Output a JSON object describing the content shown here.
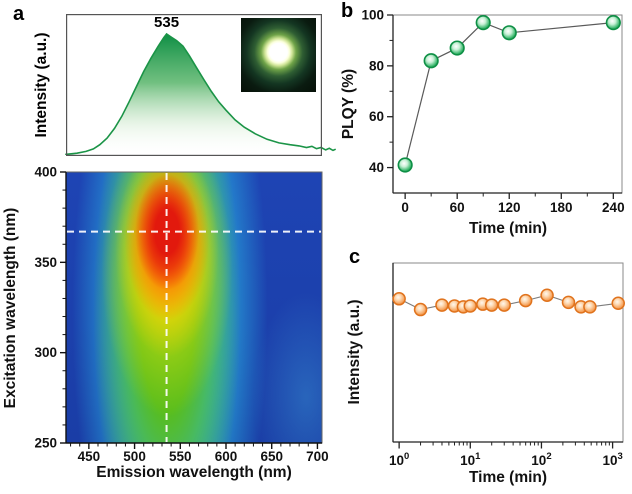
{
  "figure": {
    "background": "#ffffff",
    "panels": {
      "a": {
        "label": "a"
      },
      "b": {
        "label": "b"
      },
      "c": {
        "label": "c"
      }
    }
  },
  "colors": {
    "spectrum_green": "#1b9447",
    "plqy_marker_green": "#2db463",
    "stability_marker_orange": "#f0883a",
    "connector_gray": "#5a5a5a",
    "crosshair_white": "#ffffff",
    "map_colormap": [
      "#1e44b4",
      "#29b3e2",
      "#58bd1d",
      "#b8d70e",
      "#fcd303",
      "#f96f06",
      "#e2190d"
    ]
  },
  "chart_data": [
    {
      "id": "emission-spectrum",
      "type": "area",
      "ylabel": "Intensity (a.u.)",
      "peak_label": "535",
      "peak_wavelength": 535,
      "xlim": [
        425,
        705
      ],
      "ylim": [
        0,
        1.05
      ],
      "grid": false,
      "x": [
        425,
        437,
        447,
        455,
        462,
        470,
        478,
        486,
        494,
        502,
        510,
        518,
        526,
        532,
        535,
        540,
        546,
        553,
        560,
        568,
        576,
        584,
        592,
        600,
        610,
        620,
        632,
        645,
        658,
        670,
        680,
        688,
        694,
        699,
        704,
        709,
        713,
        717,
        720
      ],
      "y": [
        0.005,
        0.015,
        0.03,
        0.05,
        0.085,
        0.14,
        0.22,
        0.32,
        0.44,
        0.565,
        0.69,
        0.8,
        0.9,
        0.97,
        1.0,
        0.975,
        0.945,
        0.9,
        0.82,
        0.72,
        0.62,
        0.525,
        0.44,
        0.37,
        0.29,
        0.23,
        0.175,
        0.13,
        0.1,
        0.085,
        0.075,
        0.062,
        0.072,
        0.052,
        0.062,
        0.042,
        0.055,
        0.038,
        0.048
      ],
      "inset": {
        "type": "photograph",
        "content": "bright white-green luminescent spot glowing on dark background"
      }
    },
    {
      "id": "excitation-emission-map",
      "type": "heatmap",
      "xlabel": "Emission wavelength (nm)",
      "ylabel": "Excitation wavelength (nm)",
      "xlim": [
        425,
        705
      ],
      "ylim": [
        250,
        400
      ],
      "xticks": [
        450,
        500,
        550,
        600,
        650,
        700
      ],
      "yticks": [
        400,
        350,
        300,
        250
      ],
      "minor_tick_step_nm": 10,
      "crosshair": {
        "emission_nm": 535,
        "excitation_nm": 367
      },
      "hotspot": {
        "emission_nm": 535,
        "excitation_nm": 368,
        "color": "#e2190d"
      }
    },
    {
      "id": "plqy-vs-time",
      "type": "scatter",
      "xlabel": "Time (min)",
      "ylabel": "PLQY (%)",
      "xlim": [
        -14,
        250
      ],
      "ylim": [
        30,
        100
      ],
      "xticks": [
        0,
        60,
        120,
        180,
        240
      ],
      "yticks": [
        40,
        60,
        80,
        100
      ],
      "x": [
        0,
        30,
        60,
        90,
        120,
        240
      ],
      "y": [
        41,
        82,
        87,
        97,
        93,
        97
      ]
    },
    {
      "id": "intensity-stability-vs-time",
      "type": "scatter",
      "xscale": "log",
      "xlabel": "Time (min)",
      "ylabel": "Intensity (a.u.)",
      "xlim": [
        0.82,
        1400
      ],
      "ylim": [
        0,
        1
      ],
      "xticks": [
        1,
        10,
        100,
        1000
      ],
      "x": [
        1,
        2,
        4,
        6,
        8,
        10,
        15,
        20,
        30,
        60,
        120,
        240,
        360,
        480,
        1200
      ],
      "y": [
        0.8,
        0.74,
        0.765,
        0.76,
        0.755,
        0.76,
        0.77,
        0.765,
        0.765,
        0.79,
        0.82,
        0.78,
        0.755,
        0.755,
        0.775
      ]
    }
  ]
}
